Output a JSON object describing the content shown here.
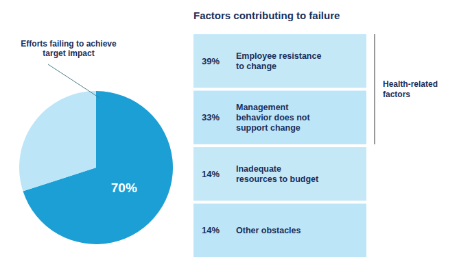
{
  "chart_data": [
    {
      "type": "pie",
      "values": [
        70,
        30
      ],
      "colors": [
        "#1B9FD4",
        "#BDE5F8"
      ],
      "data_labels": true,
      "value_labels": [
        "70%",
        null
      ],
      "annotations": [
        "Efforts failing to achieve\ntarget impact"
      ]
    },
    {
      "type": "list",
      "title": "Factors contributing to failure",
      "categories": [
        "Employee resistance\nto change",
        "Management\nbehavior does not\nsupport change",
        "Inadequate\nresources to budget",
        "Other obstacles"
      ],
      "values": [
        39,
        33,
        14,
        14
      ],
      "data_labels": true,
      "value_labels": [
        "39%",
        "33%",
        "14%",
        "14%"
      ],
      "colors": [
        "#C5E8F7",
        "#BDE5F8",
        "#C5E8F7",
        "#BDE5F8"
      ],
      "annotations": [
        "Health-related\nfactors"
      ]
    }
  ]
}
